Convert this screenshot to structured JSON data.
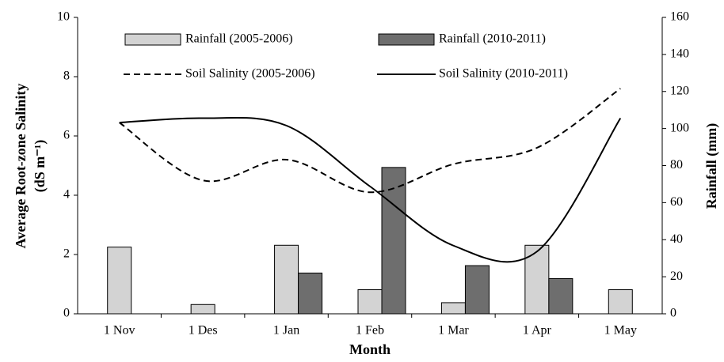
{
  "chart_data": {
    "type": "bar-line",
    "xlabel": "Month",
    "ylabel": "Average Root-zone Salinity",
    "ylabel_unit": "(dS m⁻¹)",
    "y2label": "Rainfall (mm)",
    "categories": [
      "1 Nov",
      "1 Des",
      "1 Jan",
      "1 Feb",
      "1 Mar",
      "1 Apr",
      "1 May"
    ],
    "ylim": [
      0,
      10
    ],
    "yticks": [
      0,
      2,
      4,
      6,
      8,
      10
    ],
    "y2lim": [
      0,
      160
    ],
    "y2ticks": [
      0,
      20,
      40,
      60,
      80,
      100,
      120,
      140,
      160
    ],
    "series": [
      {
        "name": "Rainfall (2005-2006)",
        "kind": "bar",
        "axis": "y2",
        "color": "#d3d3d3",
        "values": [
          36,
          5,
          37,
          13,
          6,
          37,
          13
        ]
      },
      {
        "name": "Rainfall (2010-2011)",
        "kind": "bar",
        "axis": "y2",
        "color": "#6e6e6e",
        "values": [
          null,
          null,
          22,
          79,
          26,
          19,
          null
        ]
      },
      {
        "name": "Soil Salinity (2005-2006)",
        "kind": "line",
        "dash": true,
        "color": "#000000",
        "values": [
          6.45,
          4.5,
          5.2,
          4.1,
          5.05,
          5.6,
          7.6
        ]
      },
      {
        "name": "Soil Salinity (2010-2011)",
        "kind": "line",
        "dash": false,
        "color": "#000000",
        "values": [
          6.45,
          6.6,
          6.35,
          4.3,
          2.3,
          2.1,
          6.6
        ]
      }
    ]
  }
}
